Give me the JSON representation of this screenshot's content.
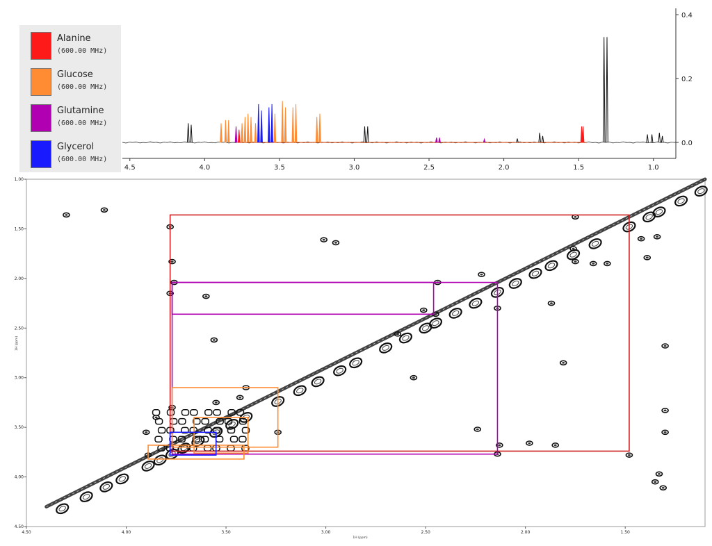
{
  "legend": {
    "items": [
      {
        "name": "Alanine",
        "freq": "(600.00 MHz)",
        "color": "#ff1a1a"
      },
      {
        "name": "Glucose",
        "freq": "(600.00 MHz)",
        "color": "#ff8c33"
      },
      {
        "name": "Glutamine",
        "freq": "(600.00 MHz)",
        "color": "#b100b1"
      },
      {
        "name": "Glycerol",
        "freq": "(600.00 MHz)",
        "color": "#1a1aff"
      }
    ]
  },
  "chart_data": [
    {
      "type": "line",
      "description_role": "1D 1H NMR spectrum",
      "x_axis": {
        "range": [
          4.55,
          0.85
        ],
        "ticks": [
          "4.5",
          "4.0",
          "3.5",
          "3.0",
          "2.5",
          "2.0",
          "1.5",
          "1.0"
        ],
        "tick_values": [
          4.5,
          4.0,
          3.5,
          3.0,
          2.5,
          2.0,
          1.5,
          1.0
        ]
      },
      "y_axis": {
        "range": [
          -0.05,
          0.42
        ],
        "ticks": [
          "0.4",
          "0.2",
          "0.0"
        ],
        "tick_values": [
          0.4,
          0.2,
          0.0
        ],
        "position": "right"
      },
      "peaks": [
        {
          "ppm": 4.11,
          "height": 0.06,
          "series": "black"
        },
        {
          "ppm": 4.09,
          "height": 0.055,
          "series": "black"
        },
        {
          "ppm": 3.89,
          "height": 0.06,
          "series": "Glucose"
        },
        {
          "ppm": 3.86,
          "height": 0.07,
          "series": "Glucose"
        },
        {
          "ppm": 3.84,
          "height": 0.07,
          "series": "Glucose"
        },
        {
          "ppm": 3.79,
          "height": 0.05,
          "series": "Glutamine"
        },
        {
          "ppm": 3.77,
          "height": 0.04,
          "series": "Alanine"
        },
        {
          "ppm": 3.75,
          "height": 0.06,
          "series": "Glucose"
        },
        {
          "ppm": 3.73,
          "height": 0.08,
          "series": "Glucose"
        },
        {
          "ppm": 3.71,
          "height": 0.09,
          "series": "Glucose"
        },
        {
          "ppm": 3.69,
          "height": 0.08,
          "series": "Glucose"
        },
        {
          "ppm": 3.66,
          "height": 0.06,
          "series": "Glucose"
        },
        {
          "ppm": 3.64,
          "height": 0.12,
          "series": "Glycerol"
        },
        {
          "ppm": 3.62,
          "height": 0.1,
          "series": "Glycerol"
        },
        {
          "ppm": 3.57,
          "height": 0.11,
          "series": "Glycerol"
        },
        {
          "ppm": 3.55,
          "height": 0.12,
          "series": "Glycerol"
        },
        {
          "ppm": 3.53,
          "height": 0.09,
          "series": "Glucose"
        },
        {
          "ppm": 3.48,
          "height": 0.13,
          "series": "Glucose"
        },
        {
          "ppm": 3.46,
          "height": 0.11,
          "series": "Glucose"
        },
        {
          "ppm": 3.41,
          "height": 0.11,
          "series": "Glucose"
        },
        {
          "ppm": 3.39,
          "height": 0.12,
          "series": "Glucose"
        },
        {
          "ppm": 3.25,
          "height": 0.08,
          "series": "Glucose"
        },
        {
          "ppm": 3.23,
          "height": 0.09,
          "series": "Glucose"
        },
        {
          "ppm": 2.93,
          "height": 0.05,
          "series": "black"
        },
        {
          "ppm": 2.91,
          "height": 0.05,
          "series": "black"
        },
        {
          "ppm": 2.45,
          "height": 0.015,
          "series": "Glutamine"
        },
        {
          "ppm": 2.43,
          "height": 0.015,
          "series": "Glutamine"
        },
        {
          "ppm": 2.13,
          "height": 0.01,
          "series": "Glutamine"
        },
        {
          "ppm": 1.91,
          "height": 0.012,
          "series": "black"
        },
        {
          "ppm": 1.76,
          "height": 0.03,
          "series": "black"
        },
        {
          "ppm": 1.74,
          "height": 0.02,
          "series": "black"
        },
        {
          "ppm": 1.48,
          "height": 0.05,
          "series": "Alanine"
        },
        {
          "ppm": 1.47,
          "height": 0.05,
          "series": "Alanine"
        },
        {
          "ppm": 1.33,
          "height": 0.33,
          "series": "black"
        },
        {
          "ppm": 1.31,
          "height": 0.33,
          "series": "black"
        },
        {
          "ppm": 1.04,
          "height": 0.025,
          "series": "black"
        },
        {
          "ppm": 1.01,
          "height": 0.025,
          "series": "black"
        },
        {
          "ppm": 0.96,
          "height": 0.03,
          "series": "black"
        },
        {
          "ppm": 0.94,
          "height": 0.02,
          "series": "black"
        }
      ]
    },
    {
      "type": "scatter",
      "description_role": "2D TOCSY contour map",
      "xlabel": "1H (ppm)",
      "ylabel": "1H (ppm)",
      "x_axis": {
        "range": [
          4.5,
          1.1
        ],
        "ticks": [
          "4.50",
          "4.00",
          "3.50",
          "3.00",
          "2.50",
          "2.00",
          "1.50"
        ],
        "tick_values": [
          4.5,
          4.0,
          3.5,
          3.0,
          2.5,
          2.0,
          1.5
        ]
      },
      "y_axis": {
        "range": [
          1.0,
          4.5
        ],
        "ticks": [
          "1.00",
          "1.50",
          "2.00",
          "2.50",
          "3.00",
          "3.50",
          "4.00",
          "4.50"
        ],
        "tick_values": [
          1.0,
          1.5,
          2.0,
          2.5,
          3.0,
          3.5,
          4.0,
          4.5
        ]
      },
      "diagonal": {
        "from": [
          4.4,
          4.3
        ],
        "to": [
          1.1,
          1.0
        ]
      },
      "spin_systems": [
        {
          "name": "Alanine",
          "color": "#cc2222",
          "x": [
            3.78,
            1.48
          ],
          "y": [
            1.36,
            3.74
          ]
        },
        {
          "name": "Glutamine",
          "color": "#b100b1",
          "x": [
            3.77,
            2.46
          ],
          "y": [
            2.04,
            2.36
          ]
        },
        {
          "name": "Glutamine",
          "color": "#b100b1",
          "x": [
            3.77,
            2.14
          ],
          "y": [
            2.04,
            3.77
          ]
        },
        {
          "name": "Glucose",
          "color": "#ff8c33",
          "x": [
            3.89,
            3.41
          ],
          "y": [
            3.68,
            3.82
          ]
        },
        {
          "name": "Glucose",
          "color": "#ff8c33",
          "x": [
            3.77,
            3.24
          ],
          "y": [
            3.1,
            3.7
          ]
        },
        {
          "name": "Glucose",
          "color": "#ff8c33",
          "x": [
            3.66,
            3.39
          ],
          "y": [
            3.4,
            3.76
          ]
        },
        {
          "name": "Glycerol",
          "color": "#1a1aff",
          "x": [
            3.78,
            3.55
          ],
          "y": [
            3.55,
            3.78
          ]
        }
      ],
      "crosspeaks": [
        [
          4.11,
          1.31
        ],
        [
          1.31,
          4.11
        ],
        [
          3.78,
          1.48
        ],
        [
          1.48,
          3.78
        ],
        [
          4.3,
          1.36
        ],
        [
          3.78,
          2.15
        ],
        [
          2.14,
          3.77
        ],
        [
          3.6,
          2.18
        ],
        [
          3.01,
          1.61
        ],
        [
          2.95,
          1.64
        ],
        [
          3.77,
          1.83
        ],
        [
          3.76,
          2.04
        ],
        [
          2.44,
          2.04
        ],
        [
          2.45,
          2.36
        ],
        [
          2.51,
          2.32
        ],
        [
          2.14,
          2.3
        ],
        [
          1.87,
          2.25
        ],
        [
          2.22,
          1.96
        ],
        [
          1.76,
          1.7
        ],
        [
          1.75,
          1.83
        ],
        [
          1.66,
          1.85
        ],
        [
          1.59,
          1.85
        ],
        [
          1.42,
          1.6
        ],
        [
          1.39,
          1.79
        ],
        [
          1.75,
          1.38
        ],
        [
          1.34,
          1.58
        ],
        [
          1.81,
          2.85
        ],
        [
          2.64,
          2.56
        ],
        [
          2.56,
          3.0
        ],
        [
          3.24,
          3.55
        ],
        [
          3.4,
          3.1
        ],
        [
          3.55,
          3.25
        ],
        [
          3.43,
          3.2
        ],
        [
          3.9,
          3.55
        ],
        [
          3.89,
          3.78
        ],
        [
          3.85,
          3.4
        ],
        [
          3.77,
          3.3
        ],
        [
          2.13,
          3.68
        ],
        [
          1.85,
          3.68
        ],
        [
          1.98,
          3.66
        ],
        [
          2.24,
          3.52
        ],
        [
          3.56,
          2.62
        ],
        [
          1.33,
          3.97
        ],
        [
          1.35,
          4.05
        ],
        [
          1.3,
          2.68
        ],
        [
          1.3,
          3.55
        ],
        [
          1.3,
          3.33
        ]
      ],
      "diagonal_peaks": [
        4.32,
        4.2,
        4.1,
        4.02,
        3.89,
        3.83,
        3.77,
        3.71,
        3.64,
        3.55,
        3.47,
        3.4,
        3.24,
        3.13,
        3.04,
        2.93,
        2.85,
        2.7,
        2.6,
        2.5,
        2.45,
        2.35,
        2.25,
        2.14,
        2.05,
        1.95,
        1.87,
        1.76,
        1.65,
        1.48,
        1.38,
        1.33,
        1.22,
        1.12,
        1.02
      ]
    }
  ]
}
